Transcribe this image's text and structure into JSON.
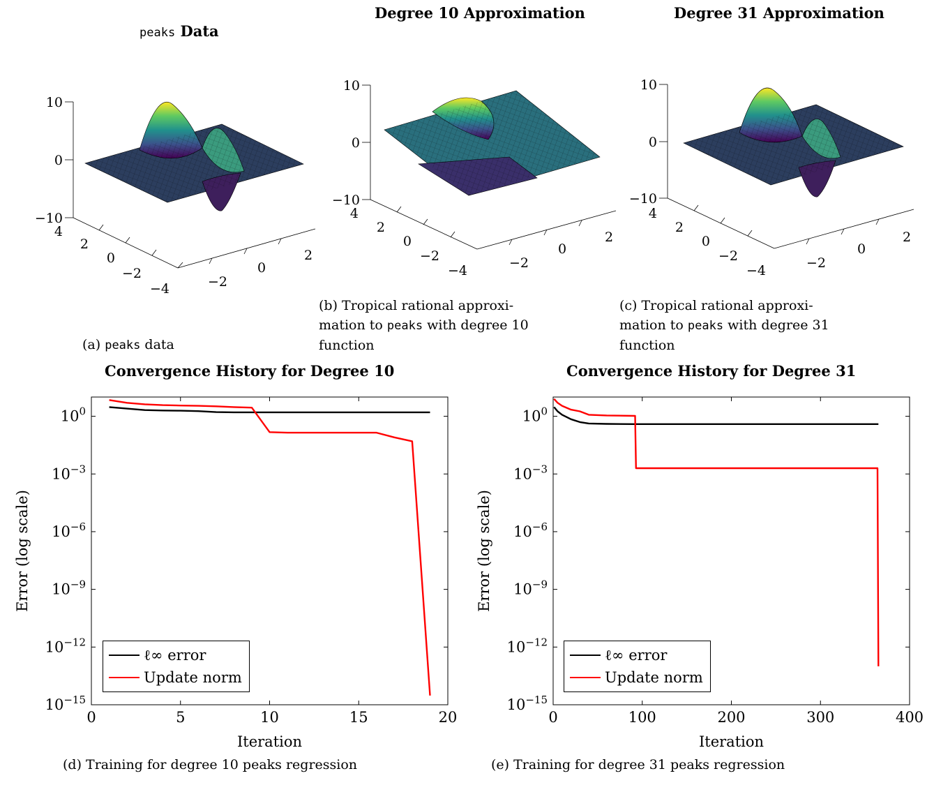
{
  "panels": {
    "a": {
      "title_mono": "peaks",
      "title_rest": " Data",
      "caption_prefix": "(a) ",
      "caption_mono": "peaks",
      "caption_rest": " data",
      "z_ticks": [
        "10",
        "0",
        "−10"
      ],
      "y_ticks": [
        "4",
        "2",
        "0",
        "−2",
        "−4"
      ],
      "x_ticks": [
        "−2",
        "0",
        "2"
      ]
    },
    "b": {
      "title": "Degree 10 Approximation",
      "caption_line1": "(b)  Tropical  rational  approxi-",
      "caption_line2_pre": "mation to ",
      "caption_line2_mono": "peaks",
      "caption_line2_post": " with degree 10",
      "caption_line3": "function",
      "z_ticks": [
        "10",
        "0",
        "−10"
      ],
      "y_ticks": [
        "4",
        "2",
        "0",
        "−2",
        "−4"
      ],
      "x_ticks": [
        "−2",
        "0",
        "2"
      ]
    },
    "c": {
      "title": "Degree 31 Approximation",
      "caption_line1": "(c)  Tropical  rational  approxi-",
      "caption_line2_pre": "mation to ",
      "caption_line2_mono": "peaks",
      "caption_line2_post": " with degree 31",
      "caption_line3": "function",
      "z_ticks": [
        "10",
        "0",
        "−10"
      ],
      "y_ticks": [
        "4",
        "2",
        "0",
        "−2",
        "−4"
      ],
      "x_ticks": [
        "−2",
        "0",
        "2"
      ]
    },
    "d": {
      "title": "Convergence History for Degree 10",
      "caption": "(d) Training for degree 10 peaks regression"
    },
    "e": {
      "title": "Convergence History for Degree 31",
      "caption": "(e) Training for degree 31 peaks regression"
    }
  },
  "colors": {
    "linf": "#000000",
    "update": "#ff0000",
    "viridis_low": "#440154",
    "viridis_mid": "#21918c",
    "viridis_high": "#fde725"
  },
  "chart_data": [
    {
      "id": "d",
      "type": "line",
      "title": "Convergence History for Degree 10",
      "xlabel": "Iteration",
      "ylabel": "Error (log scale)",
      "xlim": [
        0,
        20
      ],
      "ylim": [
        1e-15,
        10
      ],
      "yscale": "log",
      "x_ticks": [
        0,
        5,
        10,
        15,
        20
      ],
      "y_ticks": [
        {
          "exp": "0"
        },
        {
          "exp": "−3"
        },
        {
          "exp": "−6"
        },
        {
          "exp": "−9"
        },
        {
          "exp": "−12"
        },
        {
          "exp": "−15"
        }
      ],
      "legend_position": "bottom-left",
      "series": [
        {
          "name": "ℓ∞ error",
          "color": "#000000",
          "x": [
            1,
            2,
            3,
            4,
            5,
            6,
            7,
            8,
            9,
            10,
            11,
            12,
            13,
            14,
            15,
            16,
            17,
            18,
            19
          ],
          "y": [
            3.0,
            2.5,
            2.1,
            2.0,
            1.95,
            1.85,
            1.65,
            1.6,
            1.6,
            1.6,
            1.6,
            1.6,
            1.6,
            1.6,
            1.6,
            1.6,
            1.6,
            1.6,
            1.6
          ]
        },
        {
          "name": "Update norm",
          "color": "#ff0000",
          "x": [
            1,
            2,
            3,
            4,
            5,
            6,
            7,
            8,
            9,
            10,
            11,
            12,
            13,
            14,
            15,
            16,
            17,
            18,
            19
          ],
          "y": [
            7.0,
            5.0,
            4.2,
            3.8,
            3.6,
            3.5,
            3.3,
            3.0,
            2.8,
            0.15,
            0.14,
            0.14,
            0.14,
            0.14,
            0.14,
            0.14,
            0.08,
            0.05,
            3e-15
          ]
        }
      ]
    },
    {
      "id": "e",
      "type": "line",
      "title": "Convergence History for Degree 31",
      "xlabel": "Iteration",
      "ylabel": "Error (log scale)",
      "xlim": [
        0,
        400
      ],
      "ylim": [
        1e-15,
        10
      ],
      "yscale": "log",
      "x_ticks": [
        0,
        100,
        200,
        300,
        400
      ],
      "y_ticks": [
        {
          "exp": "0"
        },
        {
          "exp": "−3"
        },
        {
          "exp": "−6"
        },
        {
          "exp": "−9"
        },
        {
          "exp": "−12"
        },
        {
          "exp": "−15"
        }
      ],
      "legend_position": "bottom-left",
      "series": [
        {
          "name": "ℓ∞ error",
          "color": "#000000",
          "x": [
            1,
            5,
            10,
            20,
            30,
            40,
            60,
            90,
            150,
            250,
            365
          ],
          "y": [
            3.0,
            1.8,
            1.2,
            0.7,
            0.5,
            0.42,
            0.4,
            0.39,
            0.39,
            0.39,
            0.39
          ]
        },
        {
          "name": "Update norm",
          "color": "#ff0000",
          "x": [
            1,
            5,
            10,
            20,
            30,
            40,
            60,
            92,
            93,
            150,
            250,
            364,
            365
          ],
          "y": [
            8.0,
            5.0,
            3.5,
            2.2,
            1.8,
            1.2,
            1.1,
            1.05,
            0.002,
            0.002,
            0.002,
            0.002,
            1e-13
          ]
        }
      ]
    }
  ]
}
